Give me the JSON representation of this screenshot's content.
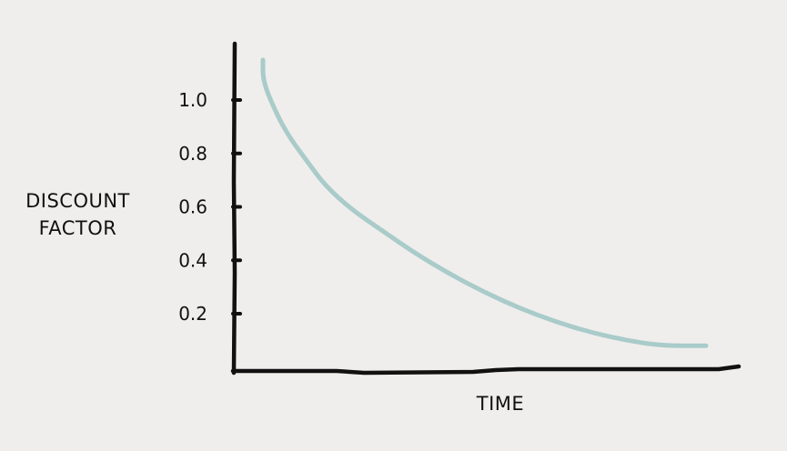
{
  "chart_data": {
    "type": "line",
    "title": "",
    "xlabel": "TIME",
    "ylabel": [
      "DISCOUNT",
      "FACTOR"
    ],
    "yticks": [
      1.0,
      0.8,
      0.6,
      0.4,
      0.2
    ],
    "ytick_labels": [
      "1.0",
      "0.8",
      "0.6",
      "0.4",
      "0.2"
    ],
    "ylim": [
      0,
      1.2
    ],
    "grid": false,
    "line_color": "#a9cbc9",
    "axis_color": "#111111",
    "series": [
      {
        "values": [
          [
            0.0,
            1.15
          ],
          [
            0.0,
            1.07
          ],
          [
            0.03,
            0.95
          ],
          [
            0.06,
            0.86
          ],
          [
            0.1,
            0.77
          ],
          [
            0.14,
            0.68
          ],
          [
            0.2,
            0.59
          ],
          [
            0.27,
            0.51
          ],
          [
            0.34,
            0.43
          ],
          [
            0.42,
            0.35
          ],
          [
            0.5,
            0.28
          ],
          [
            0.58,
            0.22
          ],
          [
            0.66,
            0.17
          ],
          [
            0.74,
            0.13
          ],
          [
            0.82,
            0.1
          ],
          [
            0.9,
            0.08
          ],
          [
            1.0,
            0.08
          ]
        ]
      }
    ]
  }
}
